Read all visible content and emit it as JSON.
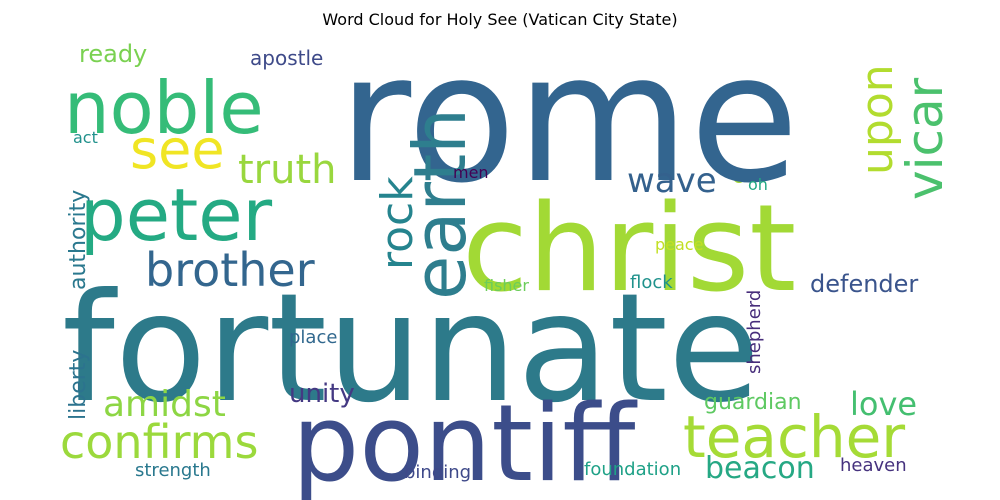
{
  "title": "Word Cloud for Holy See (Vatican City State)",
  "words": [
    {
      "text": "rome",
      "color": "#33658f"
    },
    {
      "text": "fortunate",
      "color": "#2d7a8a"
    },
    {
      "text": "christ",
      "color": "#a2d935"
    },
    {
      "text": "pontiff",
      "color": "#3c4d8a"
    },
    {
      "text": "peter",
      "color": "#24aa83"
    },
    {
      "text": "noble",
      "color": "#35bc78"
    },
    {
      "text": "earth",
      "color": "#2e7e8e"
    },
    {
      "text": "teacher",
      "color": "#a5db36"
    },
    {
      "text": "confirms",
      "color": "#9bd93c"
    },
    {
      "text": "brother",
      "color": "#33668e"
    },
    {
      "text": "see",
      "color": "#f0e524"
    },
    {
      "text": "vicar",
      "color": "#4bc16d"
    },
    {
      "text": "upon",
      "color": "#b2dc2f"
    },
    {
      "text": "rock",
      "color": "#25848e"
    },
    {
      "text": "truth",
      "color": "#99d73e"
    },
    {
      "text": "amidst",
      "color": "#8dd644"
    },
    {
      "text": "beacon",
      "color": "#26a884"
    },
    {
      "text": "love",
      "color": "#44bf70"
    },
    {
      "text": "wave",
      "color": "#34618d"
    },
    {
      "text": "unity",
      "color": "#443983"
    },
    {
      "text": "authority",
      "color": "#2a788e"
    },
    {
      "text": "liberty",
      "color": "#2c738e"
    },
    {
      "text": "defender",
      "color": "#3a548c"
    },
    {
      "text": "guardian",
      "color": "#5ec962"
    },
    {
      "text": "ready",
      "color": "#7ad151"
    },
    {
      "text": "apostle",
      "color": "#3e4a89"
    },
    {
      "text": "shepherd",
      "color": "#472d7b"
    },
    {
      "text": "heaven",
      "color": "#46327e"
    },
    {
      "text": "strength",
      "color": "#29788e"
    },
    {
      "text": "binding",
      "color": "#3e4989"
    },
    {
      "text": "foundation",
      "color": "#1fa187"
    },
    {
      "text": "place",
      "color": "#31688e"
    },
    {
      "text": "fisher",
      "color": "#6ccd5a"
    },
    {
      "text": "flock",
      "color": "#20928c"
    },
    {
      "text": "peace",
      "color": "#c2df23"
    },
    {
      "text": "men",
      "color": "#440154"
    },
    {
      "text": "act",
      "color": "#21918c"
    },
    {
      "text": "oh",
      "color": "#22a884"
    }
  ]
}
